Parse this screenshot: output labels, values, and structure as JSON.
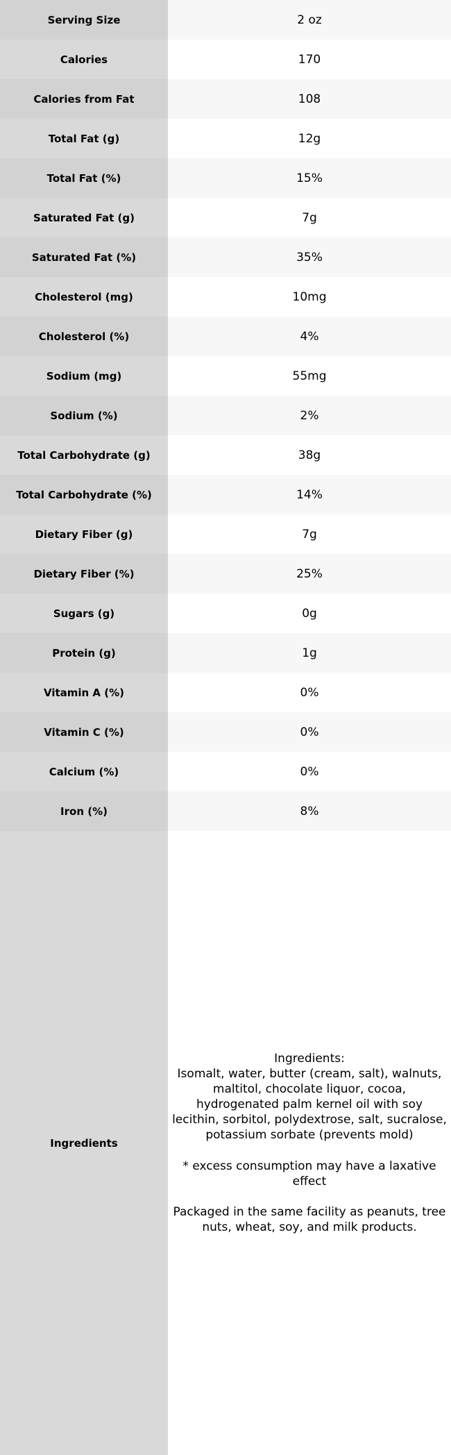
{
  "table": {
    "colors": {
      "label_bg_odd": "#d2d2d2",
      "label_bg_even": "#d9d9d9",
      "value_bg_odd": "#f7f7f7",
      "value_bg_even": "#ffffff"
    },
    "rows": [
      {
        "label": "Serving Size",
        "value": "2 oz"
      },
      {
        "label": "Calories",
        "value": "170"
      },
      {
        "label": "Calories from Fat",
        "value": "108"
      },
      {
        "label": "Total Fat (g)",
        "value": "12g"
      },
      {
        "label": "Total Fat (%)",
        "value": "15%"
      },
      {
        "label": "Saturated Fat (g)",
        "value": "7g"
      },
      {
        "label": "Saturated Fat (%)",
        "value": "35%"
      },
      {
        "label": "Cholesterol (mg)",
        "value": "10mg"
      },
      {
        "label": "Cholesterol (%)",
        "value": "4%"
      },
      {
        "label": "Sodium (mg)",
        "value": "55mg"
      },
      {
        "label": "Sodium (%)",
        "value": "2%"
      },
      {
        "label": "Total Carbohydrate (g)",
        "value": "38g"
      },
      {
        "label": "Total Carbohydrate (%)",
        "value": "14%"
      },
      {
        "label": "Dietary Fiber (g)",
        "value": "7g"
      },
      {
        "label": "Dietary Fiber (%)",
        "value": "25%"
      },
      {
        "label": "Sugars (g)",
        "value": "0g"
      },
      {
        "label": "Protein (g)",
        "value": "1g"
      },
      {
        "label": "Vitamin A (%)",
        "value": "0%"
      },
      {
        "label": "Vitamin C (%)",
        "value": "0%"
      },
      {
        "label": "Calcium (%)",
        "value": "0%"
      },
      {
        "label": "Iron (%)",
        "value": "8%"
      }
    ],
    "ingredients": {
      "label": "Ingredients",
      "value": "Ingredients:\nIsomalt, water, butter (cream, salt), walnuts, maltitol, chocolate liquor, cocoa, hydrogenated palm kernel oil with soy lecithin, sorbitol, polydextrose, salt, sucralose, potassium sorbate (prevents mold)\n\n* excess consumption may have a laxative effect\n\nPackaged in the same facility as peanuts, tree nuts, wheat, soy, and milk products."
    }
  }
}
